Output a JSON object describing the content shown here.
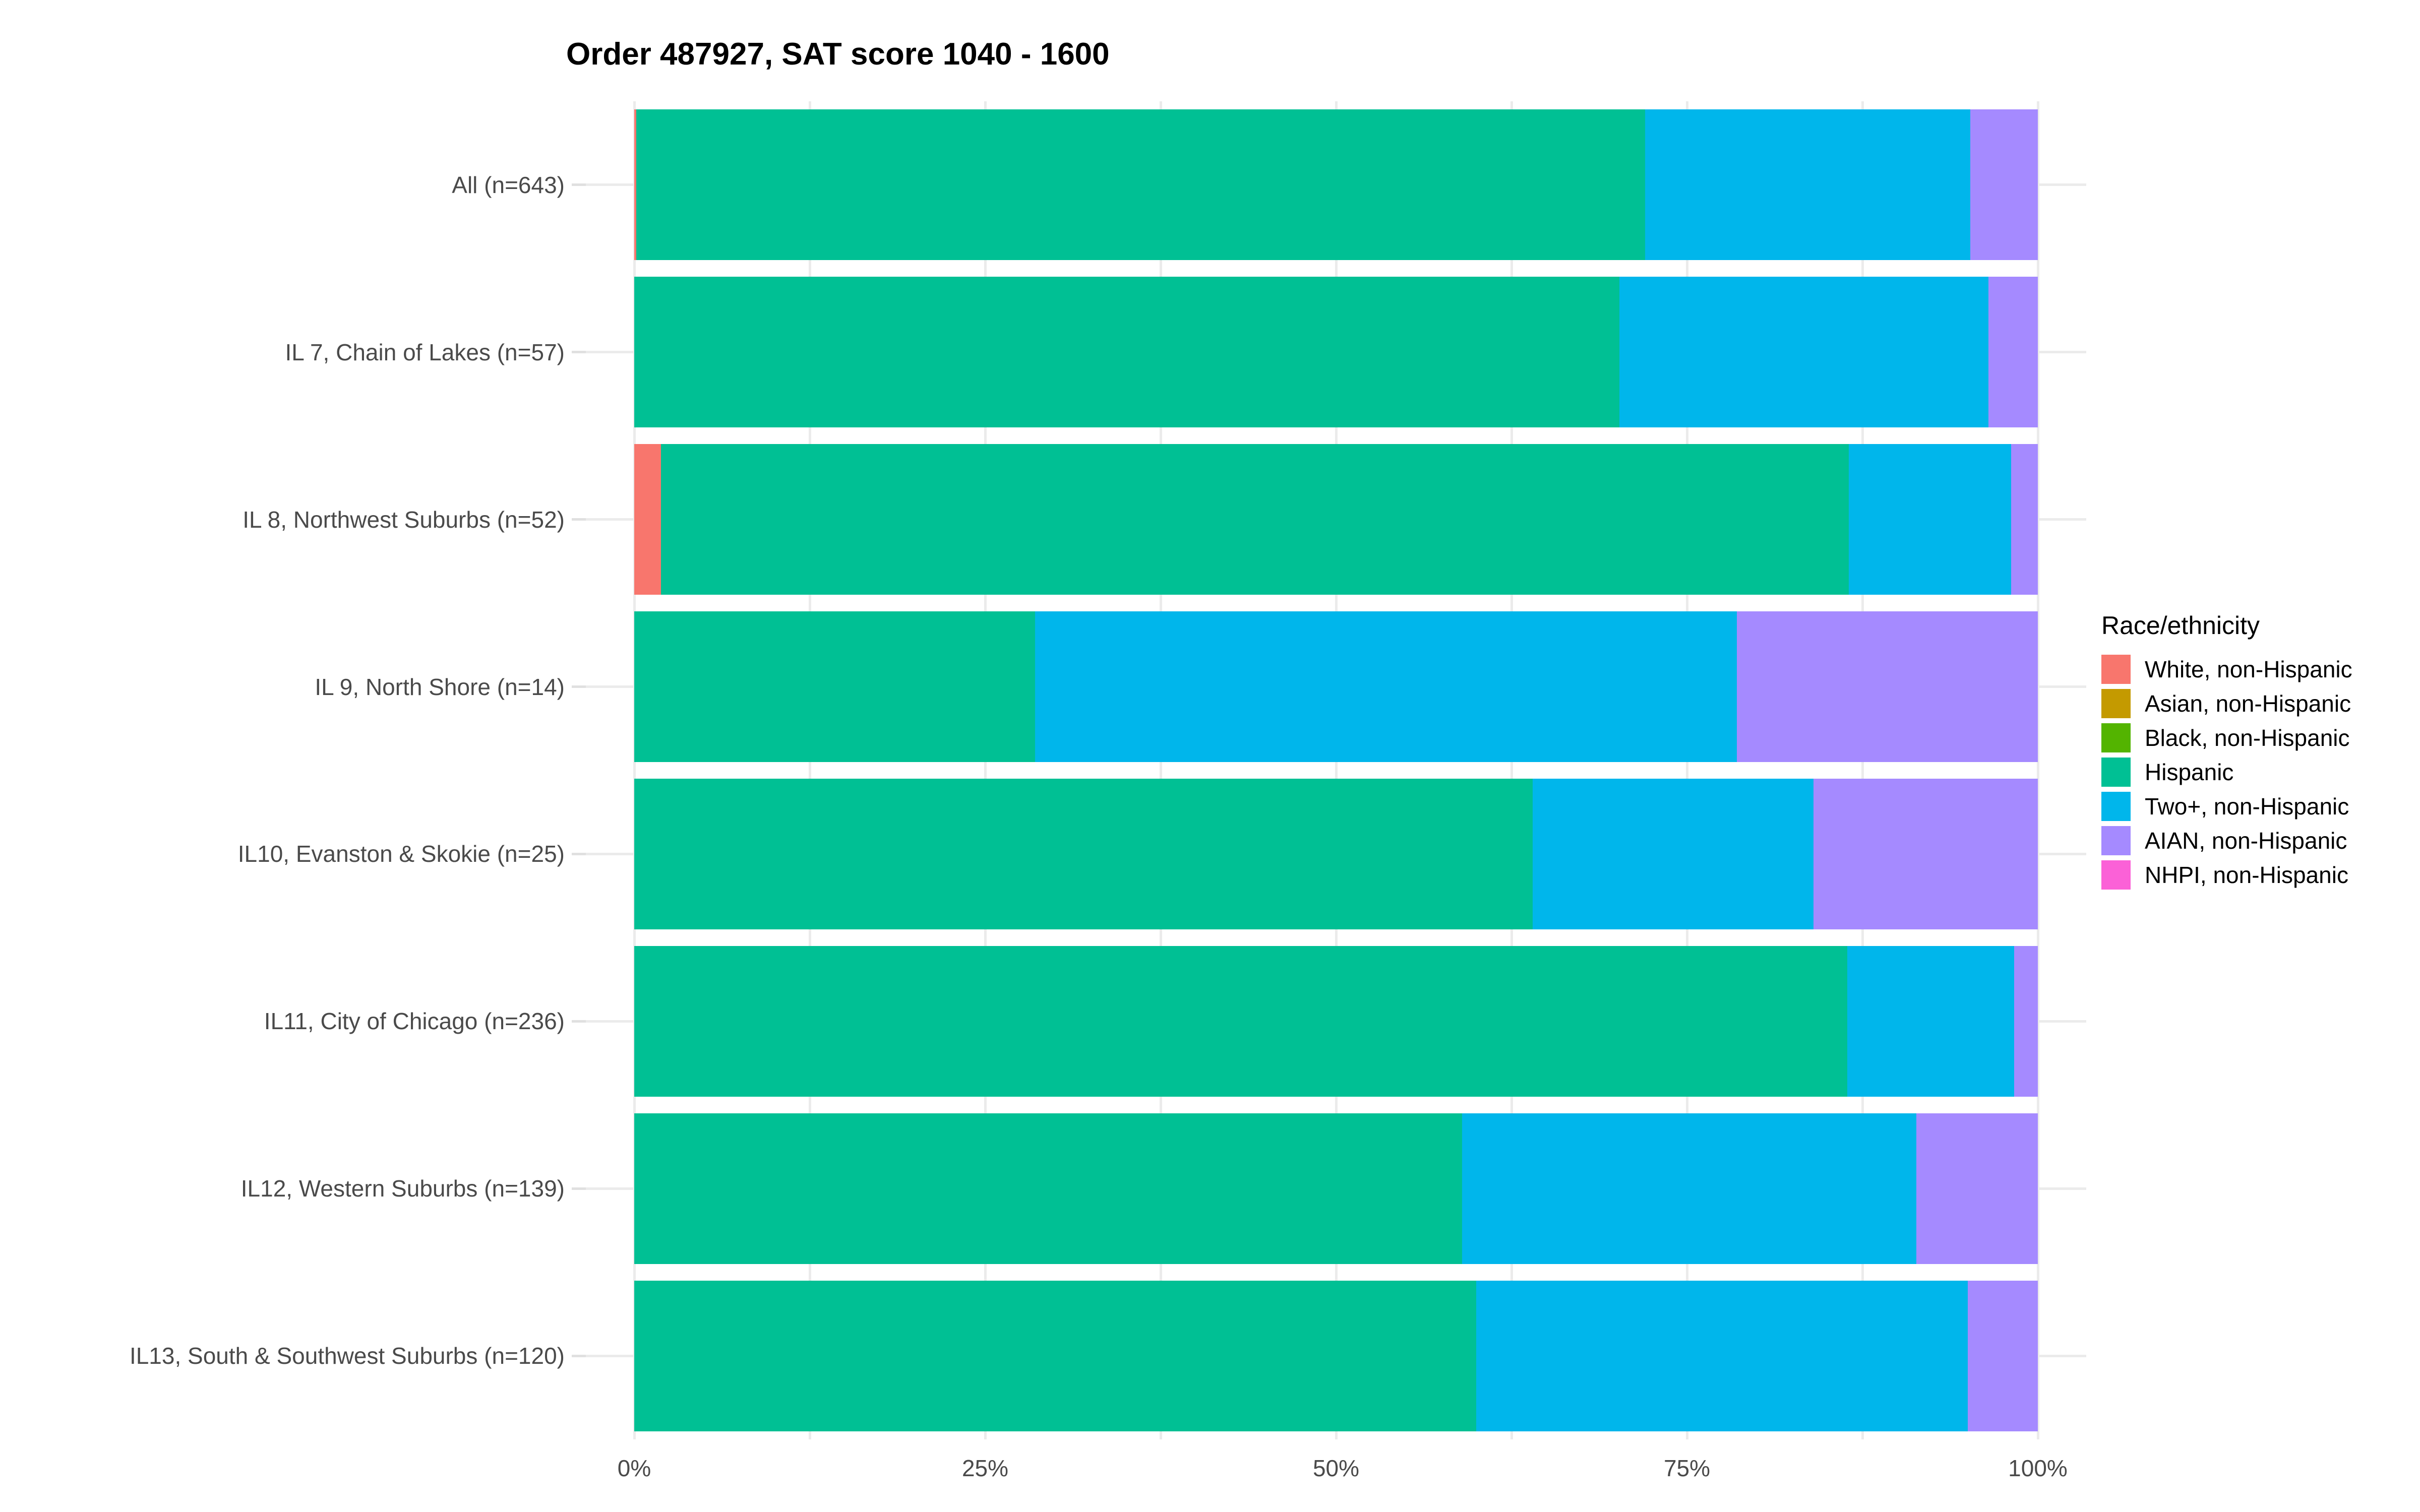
{
  "title": "Order 487927, SAT score 1040 - 1600",
  "legend": {
    "title": "Race/ethnicity",
    "entries": [
      {
        "label": "White, non-Hispanic",
        "color": "#F8766D"
      },
      {
        "label": "Asian, non-Hispanic",
        "color": "#C49A00"
      },
      {
        "label": "Black, non-Hispanic",
        "color": "#53B400"
      },
      {
        "label": "Hispanic",
        "color": "#00C094"
      },
      {
        "label": "Two+, non-Hispanic",
        "color": "#00B6EB"
      },
      {
        "label": "AIAN, non-Hispanic",
        "color": "#A58AFF"
      },
      {
        "label": "NHPI, non-Hispanic",
        "color": "#FB61D7"
      }
    ]
  },
  "x_axis": {
    "tick_labels": [
      "0%",
      "25%",
      "50%",
      "75%",
      "100%"
    ],
    "tick_values": [
      0,
      25,
      50,
      75,
      100
    ],
    "minor_tick_values": [
      12.5,
      37.5,
      62.5,
      87.5
    ]
  },
  "chart_data": {
    "type": "bar",
    "orientation": "horizontal",
    "stacked": true,
    "unit": "percent",
    "title": "Order 487927, SAT score 1040 - 1600",
    "categories": [
      "All (n=643)",
      "IL 7, Chain of Lakes (n=57)",
      "IL 8, Northwest Suburbs (n=52)",
      "IL 9, North Shore (n=14)",
      "IL10, Evanston & Skokie (n=25)",
      "IL11, City of Chicago (n=236)",
      "IL12, Western Suburbs (n=139)",
      "IL13, South & Southwest Suburbs (n=120)"
    ],
    "n_values": [
      643,
      57,
      52,
      14,
      25,
      236,
      139,
      120
    ],
    "series": [
      {
        "name": "White, non-Hispanic",
        "color": "#F8766D",
        "values": [
          0.16,
          0,
          1.92,
          0,
          0,
          0,
          0,
          0
        ]
      },
      {
        "name": "Asian, non-Hispanic",
        "color": "#C49A00",
        "values": [
          0,
          0,
          0,
          0,
          0,
          0,
          0,
          0
        ]
      },
      {
        "name": "Black, non-Hispanic",
        "color": "#53B400",
        "values": [
          0,
          0,
          0,
          0,
          0,
          0,
          0,
          0
        ]
      },
      {
        "name": "Hispanic",
        "color": "#00C094",
        "values": [
          71.85,
          70.18,
          84.62,
          28.57,
          64.0,
          86.44,
          58.99,
          60.0
        ]
      },
      {
        "name": "Two+, non-Hispanic",
        "color": "#00B6EB",
        "values": [
          23.17,
          26.32,
          11.54,
          50.0,
          20.0,
          11.86,
          32.37,
          35.0
        ]
      },
      {
        "name": "AIAN, non-Hispanic",
        "color": "#A58AFF",
        "values": [
          4.82,
          3.51,
          1.92,
          21.43,
          16.0,
          1.69,
          8.63,
          5.0
        ]
      },
      {
        "name": "NHPI, non-Hispanic",
        "color": "#FB61D7",
        "values": [
          0,
          0,
          0,
          0,
          0,
          0,
          0,
          0
        ]
      }
    ],
    "xlim": [
      0,
      100
    ],
    "grid": true,
    "legend_position": "right"
  }
}
